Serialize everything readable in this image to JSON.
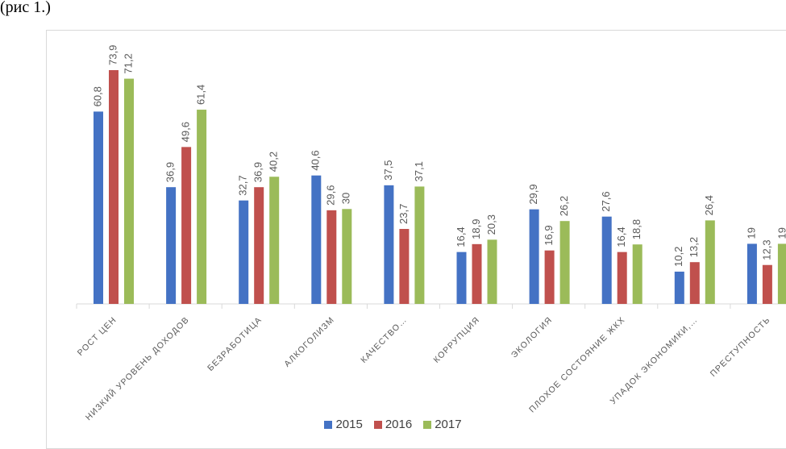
{
  "caption": "(рис 1.)",
  "chart_data": {
    "type": "bar",
    "title": "",
    "xlabel": "",
    "ylabel": "",
    "ylim": [
      0,
      80
    ],
    "grid": false,
    "legend_position": "bottom",
    "categories": [
      "РОСТ ЦЕН",
      "НИЗКИЙ УРОВЕНЬ ДОХОДОВ",
      "БЕЗРАБОТИЦА",
      "АЛКОГОЛИЗМ",
      "КАЧЕСТВО…",
      "КОРРУПЦИЯ",
      "ЭКОЛОГИЯ",
      "ПЛОХОЕ СОСТОЯНИЕ ЖКХ",
      "УПАДОК ЭКОНОМИКИ,…",
      "ПРЕСТУПНОСТЬ"
    ],
    "series": [
      {
        "name": "2015",
        "color": "#4472c4",
        "values": [
          60.8,
          36.9,
          32.7,
          40.6,
          37.5,
          16.4,
          29.9,
          27.6,
          10.2,
          19
        ],
        "labels": [
          "60,8",
          "36,9",
          "32,7",
          "40,6",
          "37,5",
          "16,4",
          "29,9",
          "27,6",
          "10,2",
          "19"
        ]
      },
      {
        "name": "2016",
        "color": "#c0504d",
        "values": [
          73.9,
          49.6,
          36.9,
          29.6,
          23.7,
          18.9,
          16.9,
          16.4,
          13.2,
          12.3
        ],
        "labels": [
          "73,9",
          "49,6",
          "36,9",
          "29,6",
          "23,7",
          "18,9",
          "16,9",
          "16,4",
          "13,2",
          "12,3"
        ]
      },
      {
        "name": "2017",
        "color": "#9bbb59",
        "values": [
          71.2,
          61.4,
          40.2,
          30,
          37.1,
          20.3,
          26.2,
          18.8,
          26.4,
          19
        ],
        "labels": [
          "71,2",
          "61,4",
          "40,2",
          "30",
          "37,1",
          "20,3",
          "26,2",
          "18,8",
          "26,4",
          "19"
        ]
      }
    ]
  }
}
